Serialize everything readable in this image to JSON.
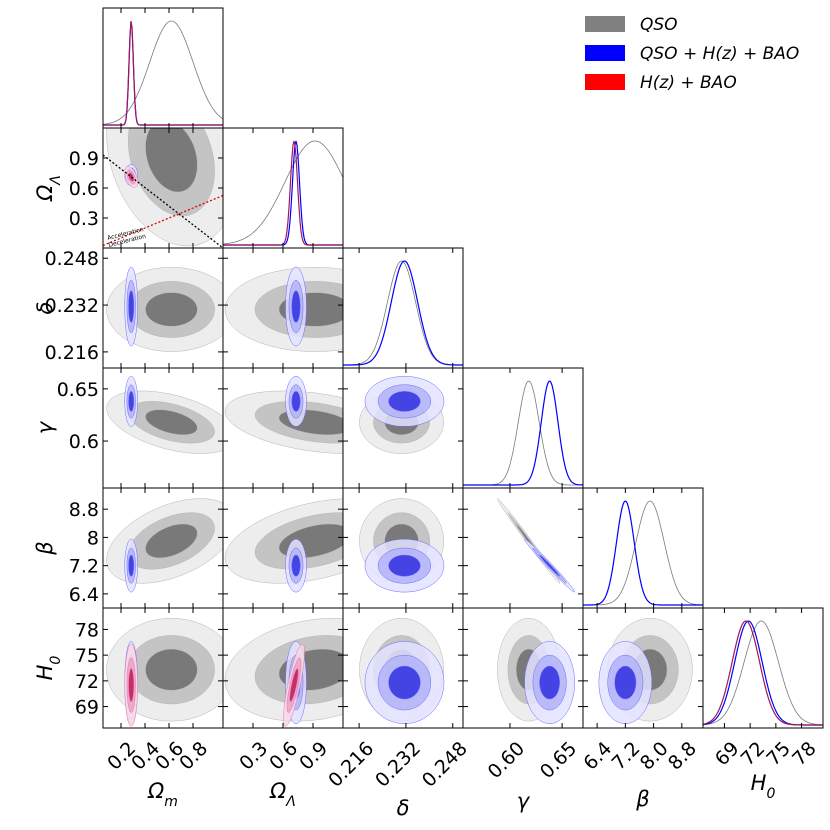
{
  "chart_data": {
    "type": "corner",
    "title": "",
    "parameters": [
      {
        "key": "Om",
        "label": "Ω_m",
        "sub": "m",
        "base": "Ω",
        "range": [
          0.05,
          1.05
        ],
        "ticks": [
          "0.2",
          "0.4",
          "0.6",
          "0.8"
        ],
        "tick_values": [
          0.2,
          0.4,
          0.6,
          0.8
        ]
      },
      {
        "key": "OL",
        "label": "Ω_Λ",
        "sub": "Λ",
        "base": "Ω",
        "range": [
          0.0,
          1.2
        ],
        "ticks": [
          "0.3",
          "0.6",
          "0.9"
        ],
        "tick_values": [
          0.3,
          0.6,
          0.9
        ]
      },
      {
        "key": "delta",
        "label": "δ",
        "sub": "",
        "base": "δ",
        "range": [
          0.2105,
          0.2515
        ],
        "ticks": [
          "0.216",
          "0.232",
          "0.248"
        ],
        "tick_values": [
          0.216,
          0.232,
          0.248
        ]
      },
      {
        "key": "gamma",
        "label": "γ",
        "sub": "",
        "base": "γ",
        "range": [
          0.555,
          0.67
        ],
        "ticks": [
          "0.60",
          "0.65"
        ],
        "tick_values": [
          0.6,
          0.65
        ]
      },
      {
        "key": "beta",
        "label": "β",
        "sub": "",
        "base": "β",
        "range": [
          6.0,
          9.4
        ],
        "ticks": [
          "6.4",
          "7.2",
          "8.0",
          "8.8"
        ],
        "tick_values": [
          6.4,
          7.2,
          8.0,
          8.8
        ]
      },
      {
        "key": "H0",
        "label": "H_0",
        "sub": "0",
        "base": "H",
        "range": [
          66.5,
          80.5
        ],
        "ticks": [
          "69",
          "72",
          "75",
          "78"
        ],
        "tick_values": [
          69,
          72,
          75,
          78
        ]
      }
    ],
    "y_tick_override": {
      "beta": [
        "6.4",
        "7.2",
        "8",
        "8.8"
      ],
      "gamma": [
        "0.6",
        "0.65"
      ]
    },
    "series": [
      {
        "name": "QSO",
        "color": "#6e6e6e",
        "mean": {
          "Om": 0.62,
          "OL": 0.92,
          "delta": 0.2305,
          "gamma": 0.618,
          "beta": 7.9,
          "H0": 73.3
        },
        "sigma": {
          "Om": 0.18,
          "OL": 0.3,
          "delta": 0.0048,
          "gamma": 0.01,
          "beta": 0.4,
          "H0": 2.0
        }
      },
      {
        "name": "QSO + H(z) + BAO",
        "color": "#0000ff",
        "mean": {
          "Om": 0.285,
          "OL": 0.73,
          "delta": 0.2315,
          "gamma": 0.638,
          "beta": 7.2,
          "H0": 71.8
        },
        "sigma": {
          "Om": 0.018,
          "OL": 0.035,
          "delta": 0.0045,
          "gamma": 0.008,
          "beta": 0.25,
          "H0": 1.6
        }
      },
      {
        "name": "H(z) + BAO",
        "color": "#ff0000",
        "mean": {
          "Om": 0.285,
          "OL": 0.71,
          "H0": 71.5
        },
        "sigma": {
          "Om": 0.018,
          "OL": 0.035,
          "H0": 1.6
        }
      }
    ],
    "annotations": [
      "Acceleration",
      "Deceleration"
    ],
    "legend_position": "top-right"
  },
  "legend": {
    "items": [
      {
        "label": "QSO",
        "color": "#808080"
      },
      {
        "label": "QSO + H(z) + BAO",
        "color": "#0000ff"
      },
      {
        "label": "H(z) + BAO",
        "color": "#ff0000"
      }
    ]
  }
}
